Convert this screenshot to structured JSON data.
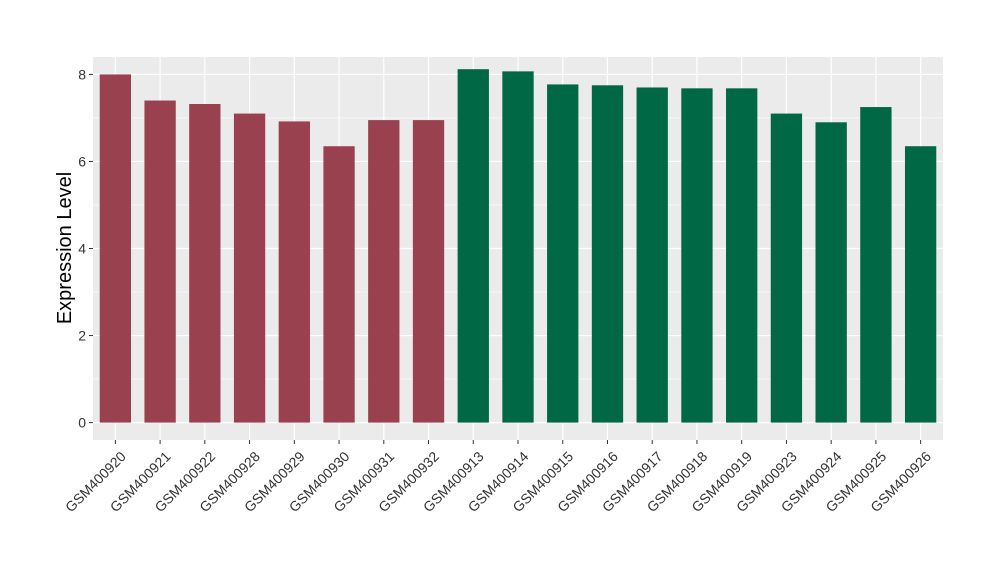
{
  "chart_data": {
    "type": "bar",
    "title": "",
    "xlabel": "",
    "ylabel": "Expression Level",
    "ylim": [
      -0.4,
      8.4
    ],
    "yticks": [
      0,
      2,
      4,
      6,
      8
    ],
    "grid": true,
    "colors": {
      "group_a": "#9a4150",
      "group_b": "#006844",
      "panel": "#ebebeb",
      "grid": "#ffffff"
    },
    "categories": [
      "GSM400920",
      "GSM400921",
      "GSM400922",
      "GSM400928",
      "GSM400929",
      "GSM400930",
      "GSM400931",
      "GSM400932",
      "GSM400913",
      "GSM400914",
      "GSM400915",
      "GSM400916",
      "GSM400917",
      "GSM400918",
      "GSM400919",
      "GSM400923",
      "GSM400924",
      "GSM400925",
      "GSM400926"
    ],
    "values": [
      8.0,
      7.4,
      7.32,
      7.1,
      6.92,
      6.35,
      6.95,
      6.95,
      8.12,
      8.07,
      7.77,
      7.75,
      7.7,
      7.68,
      7.68,
      7.1,
      6.9,
      7.25,
      6.35
    ],
    "bar_groups": [
      "group_a",
      "group_a",
      "group_a",
      "group_a",
      "group_a",
      "group_a",
      "group_a",
      "group_a",
      "group_b",
      "group_b",
      "group_b",
      "group_b",
      "group_b",
      "group_b",
      "group_b",
      "group_b",
      "group_b",
      "group_b",
      "group_b"
    ]
  }
}
